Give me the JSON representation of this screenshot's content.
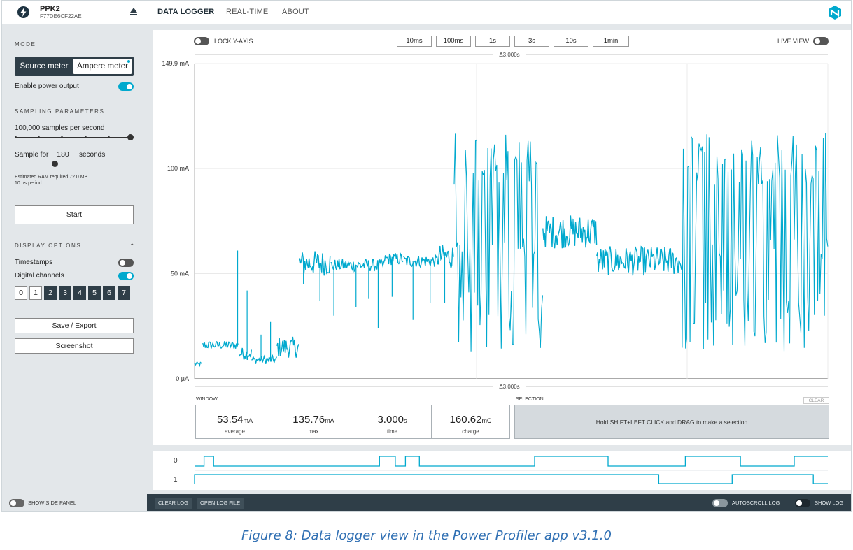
{
  "header": {
    "device_name": "PPK2",
    "device_serial": "F77DE6CF22AE",
    "tabs": [
      "DATA LOGGER",
      "REAL-TIME",
      "ABOUT"
    ],
    "active_tab": "DATA LOGGER"
  },
  "side": {
    "mode_heading": "MODE",
    "mode_options": [
      "Source meter",
      "Ampere meter"
    ],
    "mode_selected": "Ampere meter",
    "enable_power_label": "Enable power output",
    "enable_power_on": true,
    "sampling_heading": "SAMPLING PARAMETERS",
    "samples_per_second": "100,000 samples per second",
    "sample_for_label": "Sample for",
    "sample_for_value": "180",
    "sample_for_unit": "seconds",
    "ram_text": "Estimated RAM required 72.0 MB",
    "period_text": "10 us period",
    "start_label": "Start",
    "display_heading": "DISPLAY OPTIONS",
    "timestamps_label": "Timestamps",
    "timestamps_on": false,
    "digital_channels_label": "Digital channels",
    "digital_channels_on": true,
    "channels": [
      "0",
      "1",
      "2",
      "3",
      "4",
      "5",
      "6",
      "7"
    ],
    "channels_enabled": [
      false,
      false,
      true,
      true,
      true,
      true,
      true,
      true
    ],
    "save_label": "Save / Export",
    "screenshot_label": "Screenshot",
    "show_side_panel": "SHOW SIDE PANEL"
  },
  "chart_controls": {
    "lock_y_axis": "LOCK Y-AXIS",
    "lock_y_axis_on": false,
    "zoom_buttons": [
      "10ms",
      "100ms",
      "1s",
      "3s",
      "10s",
      "1min"
    ],
    "live_view": "LIVE VIEW",
    "live_view_on": false,
    "span_top": "Δ3.000s",
    "span_bottom": "Δ3.000s"
  },
  "chart_data": {
    "type": "line",
    "title": "",
    "xlabel": "",
    "ylabel": "",
    "ylim": [
      0,
      149.9
    ],
    "y_ticks": [
      "149.9 mA",
      "100 mA",
      "50 mA",
      "0 µA"
    ],
    "y_tick_values": [
      149.9,
      100,
      50,
      0
    ],
    "x_range_s": [
      0,
      3.0
    ],
    "color": "#00a9ce",
    "segments": [
      {
        "t0": 0.0,
        "t1": 0.013,
        "base": 7,
        "amp": 1
      },
      {
        "t0": 0.013,
        "t1": 0.07,
        "base": 16,
        "amp": 2
      },
      {
        "t0": 0.07,
        "t1": 0.09,
        "base": 12,
        "amp": 3
      },
      {
        "t0": 0.09,
        "t1": 0.13,
        "base": 9,
        "amp": 2
      },
      {
        "t0": 0.13,
        "t1": 0.165,
        "base": 15,
        "amp": 5
      },
      {
        "t0": 0.165,
        "t1": 0.215,
        "base": 55,
        "amp": 6
      },
      {
        "t0": 0.215,
        "t1": 0.3,
        "base": 54,
        "amp": 3
      },
      {
        "t0": 0.3,
        "t1": 0.33,
        "base": 57,
        "amp": 3
      },
      {
        "t0": 0.33,
        "t1": 0.385,
        "base": 56,
        "amp": 3
      },
      {
        "t0": 0.385,
        "t1": 0.41,
        "base": 58,
        "amp": 6
      },
      {
        "t0": 0.41,
        "t1": 0.55,
        "base": 62,
        "amp": 55
      },
      {
        "t0": 0.55,
        "t1": 0.635,
        "base": 70,
        "amp": 8
      },
      {
        "t0": 0.635,
        "t1": 0.77,
        "base": 56,
        "amp": 7
      },
      {
        "t0": 0.77,
        "t1": 1.0,
        "base": 62,
        "amp": 55
      }
    ],
    "spikes_s": [
      0.068,
      0.083,
      0.105,
      0.12,
      0.172,
      0.198,
      0.22,
      0.255,
      0.275,
      0.29,
      0.312,
      0.345,
      0.372,
      0.395
    ],
    "spike_depths_mA": [
      45,
      30,
      12,
      18,
      10,
      18,
      24,
      20,
      16,
      30,
      18,
      28,
      20,
      22
    ],
    "window_stats": [
      {
        "value": "53.54",
        "unit": "mA",
        "label": "average"
      },
      {
        "value": "135.76",
        "unit": "mA",
        "label": "max"
      },
      {
        "value": "3.000",
        "unit": "s",
        "label": "time"
      },
      {
        "value": "160.62",
        "unit": "mC",
        "label": "charge"
      }
    ]
  },
  "stats": {
    "window_heading": "WINDOW",
    "selection_heading": "SELECTION",
    "selection_hint": "Hold SHIFT+LEFT CLICK and DRAG to make a selection",
    "clear_label": "CLEAR"
  },
  "digital": {
    "channels": [
      {
        "name": "0",
        "high": [
          [
            0.015,
            0.03
          ],
          [
            0.292,
            0.317
          ],
          [
            0.333,
            0.355
          ],
          [
            0.537,
            0.653
          ],
          [
            0.775,
            0.862
          ],
          [
            0.947,
            1.0
          ]
        ],
        "start_high": false
      },
      {
        "name": "1",
        "high": [
          [
            0.0,
            0.733
          ],
          [
            0.849,
            0.977
          ]
        ],
        "start_high": true
      }
    ]
  },
  "footer": {
    "clear_log": "CLEAR LOG",
    "open_log_file": "OPEN LOG FILE",
    "autoscroll_log": "AUTOSCROLL LOG",
    "show_log": "SHOW LOG"
  },
  "caption": "Figure 8: Data logger view in the Power Profiler app v3.1.0"
}
